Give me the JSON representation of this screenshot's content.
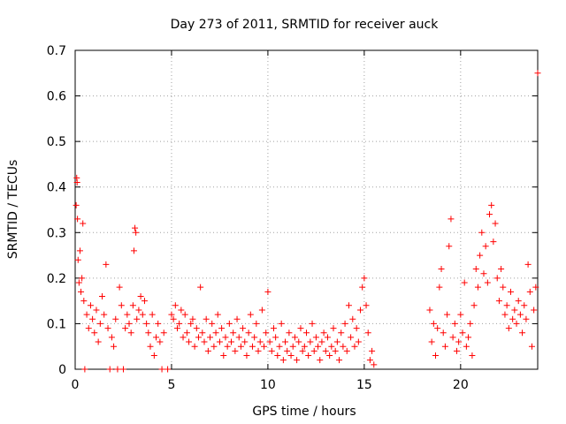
{
  "chart_data": {
    "type": "scatter",
    "title": "Day 273 of 2011, SRMTID for receiver auck",
    "xlabel": "GPS time / hours",
    "ylabel": "SRMTID / TECUs",
    "xlim": [
      0,
      24
    ],
    "ylim": [
      0,
      0.7
    ],
    "x_ticks": [
      "0",
      "5",
      "10",
      "15",
      "20"
    ],
    "x_tick_values": [
      0,
      5,
      10,
      15,
      20
    ],
    "y_ticks": [
      "0",
      "0.1",
      "0.2",
      "0.3",
      "0.4",
      "0.5",
      "0.6",
      "0.7"
    ],
    "y_tick_values": [
      0,
      0.1,
      0.2,
      0.3,
      0.4,
      0.5,
      0.6,
      0.7
    ],
    "grid": true,
    "legend": "none",
    "marker": "+",
    "color": "#ff0000",
    "series": [
      {
        "points": [
          [
            0.05,
            0.36
          ],
          [
            0.08,
            0.42
          ],
          [
            0.1,
            0.41
          ],
          [
            0.12,
            0.33
          ],
          [
            0.15,
            0.24
          ],
          [
            0.2,
            0.19
          ],
          [
            0.25,
            0.26
          ],
          [
            0.3,
            0.17
          ],
          [
            0.35,
            0.2
          ],
          [
            0.4,
            0.32
          ],
          [
            0.45,
            0.15
          ],
          [
            0.5,
            0.0
          ],
          [
            0.6,
            0.12
          ],
          [
            0.7,
            0.09
          ],
          [
            0.8,
            0.14
          ],
          [
            0.9,
            0.11
          ],
          [
            1.0,
            0.08
          ],
          [
            1.1,
            0.13
          ],
          [
            1.2,
            0.06
          ],
          [
            1.3,
            0.1
          ],
          [
            1.4,
            0.16
          ],
          [
            1.5,
            0.12
          ],
          [
            1.6,
            0.23
          ],
          [
            1.7,
            0.09
          ],
          [
            1.8,
            0.0
          ],
          [
            1.9,
            0.07
          ],
          [
            2.0,
            0.05
          ],
          [
            2.1,
            0.11
          ],
          [
            2.2,
            0.0
          ],
          [
            2.3,
            0.18
          ],
          [
            2.4,
            0.14
          ],
          [
            2.5,
            0.0
          ],
          [
            2.6,
            0.09
          ],
          [
            2.7,
            0.12
          ],
          [
            2.8,
            0.1
          ],
          [
            2.9,
            0.08
          ],
          [
            3.0,
            0.14
          ],
          [
            3.05,
            0.26
          ],
          [
            3.1,
            0.31
          ],
          [
            3.15,
            0.3
          ],
          [
            3.2,
            0.11
          ],
          [
            3.3,
            0.13
          ],
          [
            3.4,
            0.16
          ],
          [
            3.5,
            0.12
          ],
          [
            3.6,
            0.15
          ],
          [
            3.7,
            0.1
          ],
          [
            3.8,
            0.08
          ],
          [
            3.9,
            0.05
          ],
          [
            4.0,
            0.12
          ],
          [
            4.1,
            0.03
          ],
          [
            4.2,
            0.07
          ],
          [
            4.3,
            0.1
          ],
          [
            4.4,
            0.06
          ],
          [
            4.5,
            0.0
          ],
          [
            4.6,
            0.08
          ],
          [
            4.8,
            0.0
          ],
          [
            5.0,
            0.12
          ],
          [
            5.1,
            0.11
          ],
          [
            5.2,
            0.14
          ],
          [
            5.3,
            0.09
          ],
          [
            5.4,
            0.1
          ],
          [
            5.5,
            0.13
          ],
          [
            5.6,
            0.07
          ],
          [
            5.7,
            0.12
          ],
          [
            5.8,
            0.08
          ],
          [
            5.9,
            0.06
          ],
          [
            6.0,
            0.1
          ],
          [
            6.1,
            0.11
          ],
          [
            6.2,
            0.05
          ],
          [
            6.3,
            0.09
          ],
          [
            6.4,
            0.07
          ],
          [
            6.5,
            0.18
          ],
          [
            6.6,
            0.08
          ],
          [
            6.7,
            0.06
          ],
          [
            6.8,
            0.11
          ],
          [
            6.9,
            0.04
          ],
          [
            7.0,
            0.07
          ],
          [
            7.1,
            0.1
          ],
          [
            7.2,
            0.05
          ],
          [
            7.3,
            0.08
          ],
          [
            7.4,
            0.12
          ],
          [
            7.5,
            0.06
          ],
          [
            7.6,
            0.09
          ],
          [
            7.7,
            0.03
          ],
          [
            7.8,
            0.07
          ],
          [
            7.9,
            0.05
          ],
          [
            8.0,
            0.1
          ],
          [
            8.1,
            0.06
          ],
          [
            8.2,
            0.08
          ],
          [
            8.3,
            0.04
          ],
          [
            8.4,
            0.11
          ],
          [
            8.5,
            0.07
          ],
          [
            8.6,
            0.05
          ],
          [
            8.7,
            0.09
          ],
          [
            8.8,
            0.06
          ],
          [
            8.9,
            0.03
          ],
          [
            9.0,
            0.08
          ],
          [
            9.1,
            0.12
          ],
          [
            9.2,
            0.05
          ],
          [
            9.3,
            0.07
          ],
          [
            9.4,
            0.1
          ],
          [
            9.5,
            0.04
          ],
          [
            9.6,
            0.06
          ],
          [
            9.7,
            0.13
          ],
          [
            9.8,
            0.05
          ],
          [
            9.9,
            0.08
          ],
          [
            10.0,
            0.17
          ],
          [
            10.1,
            0.06
          ],
          [
            10.2,
            0.04
          ],
          [
            10.3,
            0.09
          ],
          [
            10.4,
            0.07
          ],
          [
            10.5,
            0.03
          ],
          [
            10.6,
            0.05
          ],
          [
            10.7,
            0.1
          ],
          [
            10.8,
            0.02
          ],
          [
            10.9,
            0.06
          ],
          [
            11.0,
            0.04
          ],
          [
            11.1,
            0.08
          ],
          [
            11.2,
            0.03
          ],
          [
            11.3,
            0.05
          ],
          [
            11.4,
            0.07
          ],
          [
            11.5,
            0.02
          ],
          [
            11.6,
            0.06
          ],
          [
            11.7,
            0.09
          ],
          [
            11.8,
            0.04
          ],
          [
            11.9,
            0.05
          ],
          [
            12.0,
            0.08
          ],
          [
            12.1,
            0.03
          ],
          [
            12.2,
            0.06
          ],
          [
            12.3,
            0.1
          ],
          [
            12.4,
            0.04
          ],
          [
            12.5,
            0.07
          ],
          [
            12.6,
            0.05
          ],
          [
            12.7,
            0.02
          ],
          [
            12.8,
            0.06
          ],
          [
            12.9,
            0.08
          ],
          [
            13.0,
            0.04
          ],
          [
            13.1,
            0.07
          ],
          [
            13.2,
            0.03
          ],
          [
            13.3,
            0.05
          ],
          [
            13.4,
            0.09
          ],
          [
            13.5,
            0.04
          ],
          [
            13.6,
            0.06
          ],
          [
            13.7,
            0.02
          ],
          [
            13.8,
            0.08
          ],
          [
            13.9,
            0.05
          ],
          [
            14.0,
            0.1
          ],
          [
            14.1,
            0.04
          ],
          [
            14.2,
            0.14
          ],
          [
            14.3,
            0.07
          ],
          [
            14.4,
            0.11
          ],
          [
            14.5,
            0.05
          ],
          [
            14.6,
            0.09
          ],
          [
            14.7,
            0.06
          ],
          [
            14.8,
            0.13
          ],
          [
            14.9,
            0.18
          ],
          [
            15.0,
            0.2
          ],
          [
            15.1,
            0.14
          ],
          [
            15.2,
            0.08
          ],
          [
            15.3,
            0.02
          ],
          [
            15.4,
            0.04
          ],
          [
            15.5,
            0.01
          ],
          [
            18.4,
            0.13
          ],
          [
            18.5,
            0.06
          ],
          [
            18.6,
            0.1
          ],
          [
            18.7,
            0.03
          ],
          [
            18.8,
            0.09
          ],
          [
            18.9,
            0.18
          ],
          [
            19.0,
            0.22
          ],
          [
            19.1,
            0.08
          ],
          [
            19.2,
            0.05
          ],
          [
            19.3,
            0.12
          ],
          [
            19.4,
            0.27
          ],
          [
            19.5,
            0.33
          ],
          [
            19.6,
            0.07
          ],
          [
            19.7,
            0.1
          ],
          [
            19.8,
            0.04
          ],
          [
            19.9,
            0.06
          ],
          [
            20.0,
            0.12
          ],
          [
            20.1,
            0.08
          ],
          [
            20.2,
            0.19
          ],
          [
            20.3,
            0.05
          ],
          [
            20.4,
            0.07
          ],
          [
            20.5,
            0.1
          ],
          [
            20.6,
            0.03
          ],
          [
            20.7,
            0.14
          ],
          [
            20.8,
            0.22
          ],
          [
            20.9,
            0.18
          ],
          [
            21.0,
            0.25
          ],
          [
            21.1,
            0.3
          ],
          [
            21.2,
            0.21
          ],
          [
            21.3,
            0.27
          ],
          [
            21.4,
            0.19
          ],
          [
            21.5,
            0.34
          ],
          [
            21.6,
            0.36
          ],
          [
            21.7,
            0.28
          ],
          [
            21.8,
            0.32
          ],
          [
            21.9,
            0.2
          ],
          [
            22.0,
            0.15
          ],
          [
            22.1,
            0.22
          ],
          [
            22.2,
            0.18
          ],
          [
            22.3,
            0.12
          ],
          [
            22.4,
            0.14
          ],
          [
            22.5,
            0.09
          ],
          [
            22.6,
            0.17
          ],
          [
            22.7,
            0.11
          ],
          [
            22.8,
            0.13
          ],
          [
            22.9,
            0.1
          ],
          [
            23.0,
            0.15
          ],
          [
            23.1,
            0.12
          ],
          [
            23.2,
            0.08
          ],
          [
            23.3,
            0.14
          ],
          [
            23.4,
            0.11
          ],
          [
            23.5,
            0.23
          ],
          [
            23.6,
            0.17
          ],
          [
            23.7,
            0.05
          ],
          [
            23.8,
            0.13
          ],
          [
            23.9,
            0.18
          ],
          [
            24.0,
            0.65
          ]
        ]
      }
    ]
  }
}
